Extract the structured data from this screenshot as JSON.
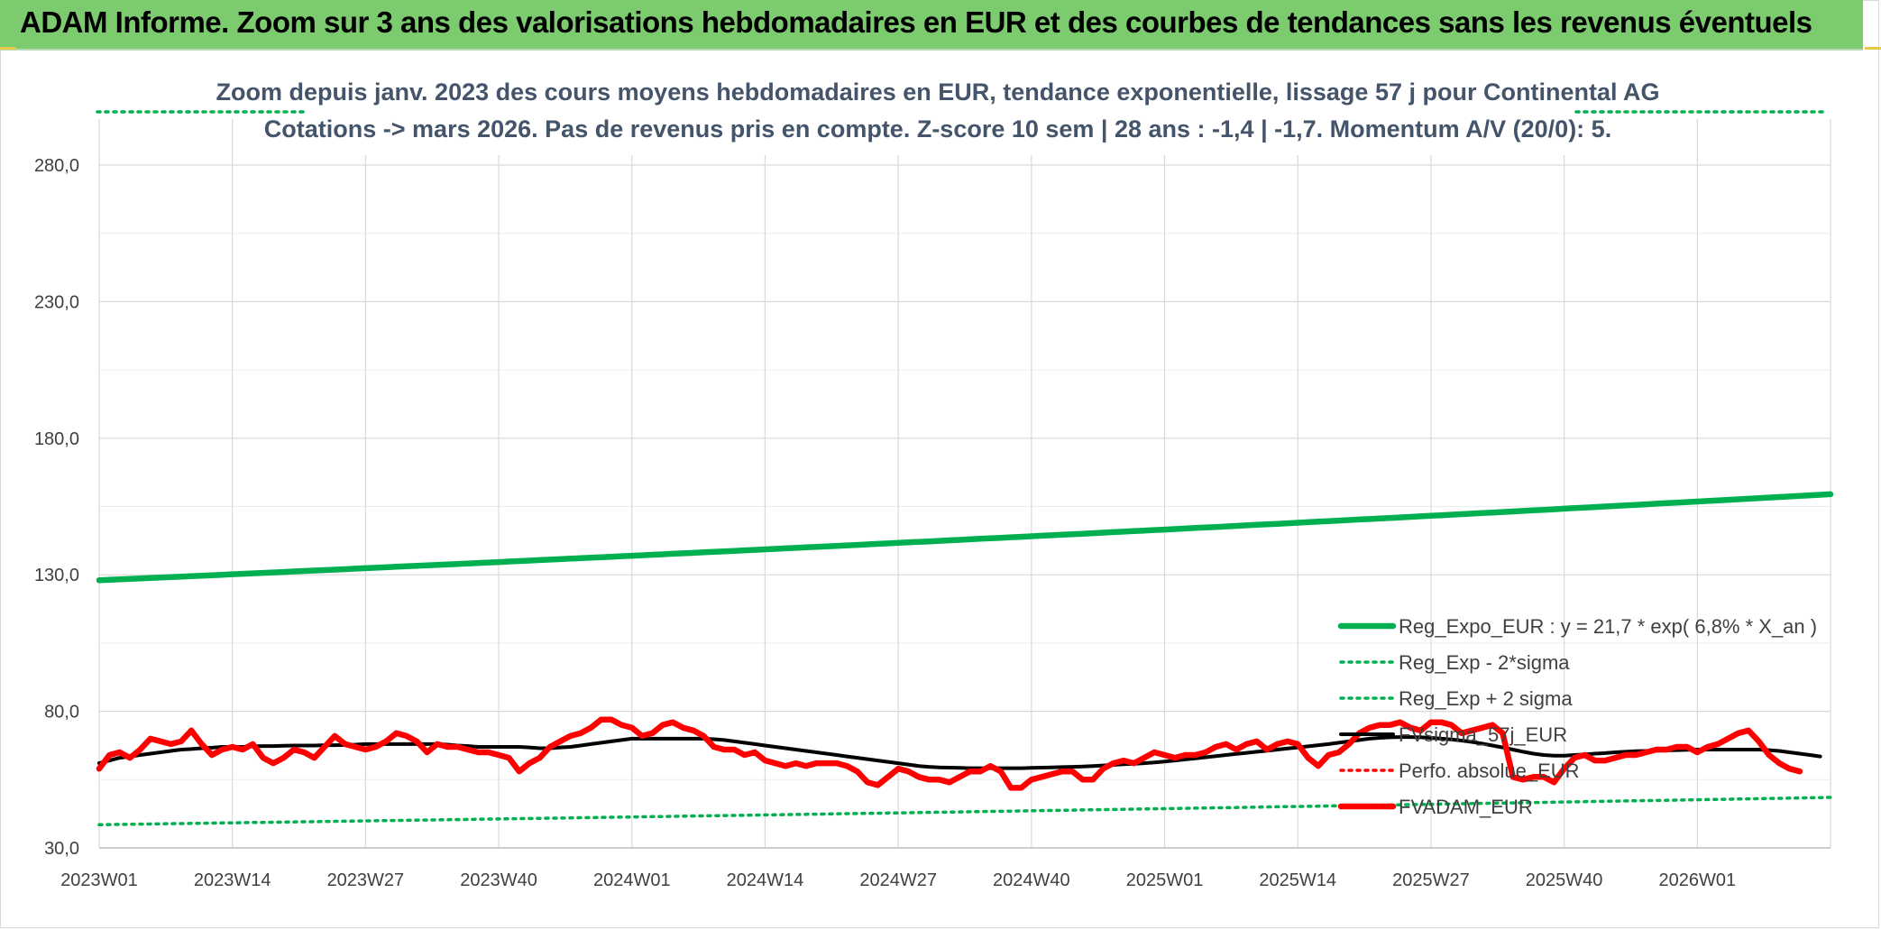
{
  "banner": {
    "title": "ADAM Informe. Zoom sur 3 ans des valorisations hebdomadaires en EUR et des courbes de tendances sans les revenus éventuels"
  },
  "colors": {
    "banner_bg": "#7ccb6f",
    "reg_expo": "#00b050",
    "fvsigma": "#000000",
    "fvadam": "#ff0000",
    "perfo": "#ff0000",
    "subtitle": "#44546a",
    "grid": "#d9d9d9"
  },
  "chart_data": {
    "type": "line",
    "title_line1": "Zoom depuis janv. 2023 des cours moyens hebdomadaires en EUR, tendance exponentielle, lissage 57 j pour Continental AG",
    "title_line2": "Cotations -> mars 2026. Pas de revenus pris en compte. Z-score 10 sem | 28 ans : -1,4 | -1,7. Momentum A/V (20/0): 5.",
    "ylim": [
      30,
      290
    ],
    "y_ticks": [
      "280,0",
      "230,0",
      "180,0",
      "130,0",
      "80,0",
      "30,0"
    ],
    "y_tick_values": [
      280,
      230,
      180,
      130,
      80,
      30
    ],
    "x_ticks": [
      "2023W01",
      "2023W14",
      "2023W27",
      "2023W40",
      "2024W01",
      "2024W14",
      "2024W27",
      "2024W40",
      "2025W01",
      "2025W14",
      "2025W27",
      "2025W40",
      "2026W01"
    ],
    "x_tick_weeks": [
      0,
      13,
      26,
      39,
      52,
      65,
      78,
      91,
      104,
      117,
      130,
      143,
      156
    ],
    "n_weeks": 170,
    "grid": true,
    "legend_position": "bottom-right",
    "series": [
      {
        "name": "Reg_Expo_EUR : y = 21,7 * exp( 6,8% *  X_an )",
        "style": "thick-solid",
        "color": "#00b050",
        "start": 128.0,
        "end": 159.5
      },
      {
        "name": "Reg_Exp - 2*sigma",
        "style": "dotted",
        "color": "#00b050",
        "start": 38.5,
        "end": 48.5
      },
      {
        "name": "Reg_Exp + 2 sigma",
        "style": "dotted",
        "color": "#00b050",
        "start": 300,
        "end": 300
      },
      {
        "name": "FVsigma_57j_EUR",
        "style": "solid",
        "color": "#000000",
        "values": [
          61,
          62,
          63,
          63.5,
          64,
          64.5,
          65,
          65.5,
          66,
          66.2,
          66.5,
          66.7,
          67,
          67,
          67,
          67.2,
          67.3,
          67.3,
          67.4,
          67.5,
          67.5,
          67.5,
          67.6,
          67.6,
          67.7,
          67.8,
          68,
          68,
          68,
          68,
          68,
          68,
          68,
          68,
          67.8,
          67.5,
          67.3,
          67,
          67,
          67,
          67,
          67,
          66.8,
          66.5,
          66.5,
          66.8,
          67,
          67.5,
          68,
          68.5,
          69,
          69.5,
          70,
          70,
          70,
          70,
          70,
          70,
          70,
          70,
          69.8,
          69.5,
          69,
          68.5,
          68,
          67.5,
          67,
          66.5,
          66,
          65.5,
          65,
          64.5,
          64,
          63.5,
          63,
          62.5,
          62,
          61.5,
          61,
          60.5,
          60,
          59.7,
          59.5,
          59.4,
          59.3,
          59.2,
          59.2,
          59.2,
          59.2,
          59.2,
          59.2,
          59.3,
          59.4,
          59.5,
          59.6,
          59.7,
          59.8,
          60,
          60.2,
          60.4,
          60.6,
          60.8,
          61,
          61.3,
          61.6,
          62,
          62.4,
          62.8,
          63.2,
          63.6,
          64,
          64.4,
          64.8,
          65.2,
          65.6,
          66,
          66.4,
          66.8,
          67.2,
          67.6,
          68,
          68.5,
          69,
          69.5,
          70,
          70.3,
          70.5,
          70.6,
          70.6,
          70.5,
          70.3,
          70,
          69.7,
          69.3,
          68.8,
          68.2,
          67.5,
          66.8,
          66,
          65.2,
          64.5,
          64,
          63.8,
          63.8,
          64,
          64.2,
          64.5,
          64.7,
          65,
          65.2,
          65.4,
          65.5,
          65.6,
          65.7,
          65.8,
          65.9,
          66,
          66,
          66,
          66,
          66,
          66,
          66,
          65.8,
          65.5,
          65,
          64.5,
          64,
          63.5
        ]
      },
      {
        "name": "Perfo. absolue_EUR",
        "style": "dotted",
        "color": "#ff0000",
        "start": 300,
        "end": 300
      },
      {
        "name": "FVADAM_EUR",
        "style": "thick-solid",
        "color": "#ff0000",
        "values": [
          59,
          64,
          65,
          63,
          66,
          70,
          69,
          68,
          69,
          73,
          68,
          64,
          66,
          67,
          66,
          68,
          63,
          61,
          63,
          66,
          65,
          63,
          67,
          71,
          68,
          67,
          66,
          67,
          69,
          72,
          71,
          69,
          65,
          68,
          67,
          67,
          66,
          65,
          65,
          64,
          63,
          58,
          61,
          63,
          67,
          69,
          71,
          72,
          74,
          77,
          77,
          75,
          74,
          71,
          72,
          75,
          76,
          74,
          73,
          71,
          67,
          66,
          66,
          64,
          65,
          62,
          61,
          60,
          61,
          60,
          61,
          61,
          61,
          60,
          58,
          54,
          53,
          56,
          59,
          58,
          56,
          55,
          55,
          54,
          56,
          58,
          58,
          60,
          58,
          52,
          52,
          55,
          56,
          57,
          58,
          58,
          55,
          55,
          59,
          61,
          62,
          61,
          63,
          65,
          64,
          63,
          64,
          64,
          65,
          67,
          68,
          66,
          68,
          69,
          66,
          68,
          69,
          68,
          63,
          60,
          64,
          65,
          68,
          72,
          74,
          75,
          75,
          76,
          74,
          73,
          76,
          76,
          75,
          72,
          73,
          74,
          75,
          72,
          56,
          55,
          56,
          56,
          54,
          59,
          63,
          64,
          62,
          62,
          63,
          64,
          64,
          65,
          66,
          66,
          67,
          67,
          65,
          67,
          68,
          70,
          72,
          73,
          69,
          64,
          61,
          59,
          58
        ]
      }
    ]
  }
}
